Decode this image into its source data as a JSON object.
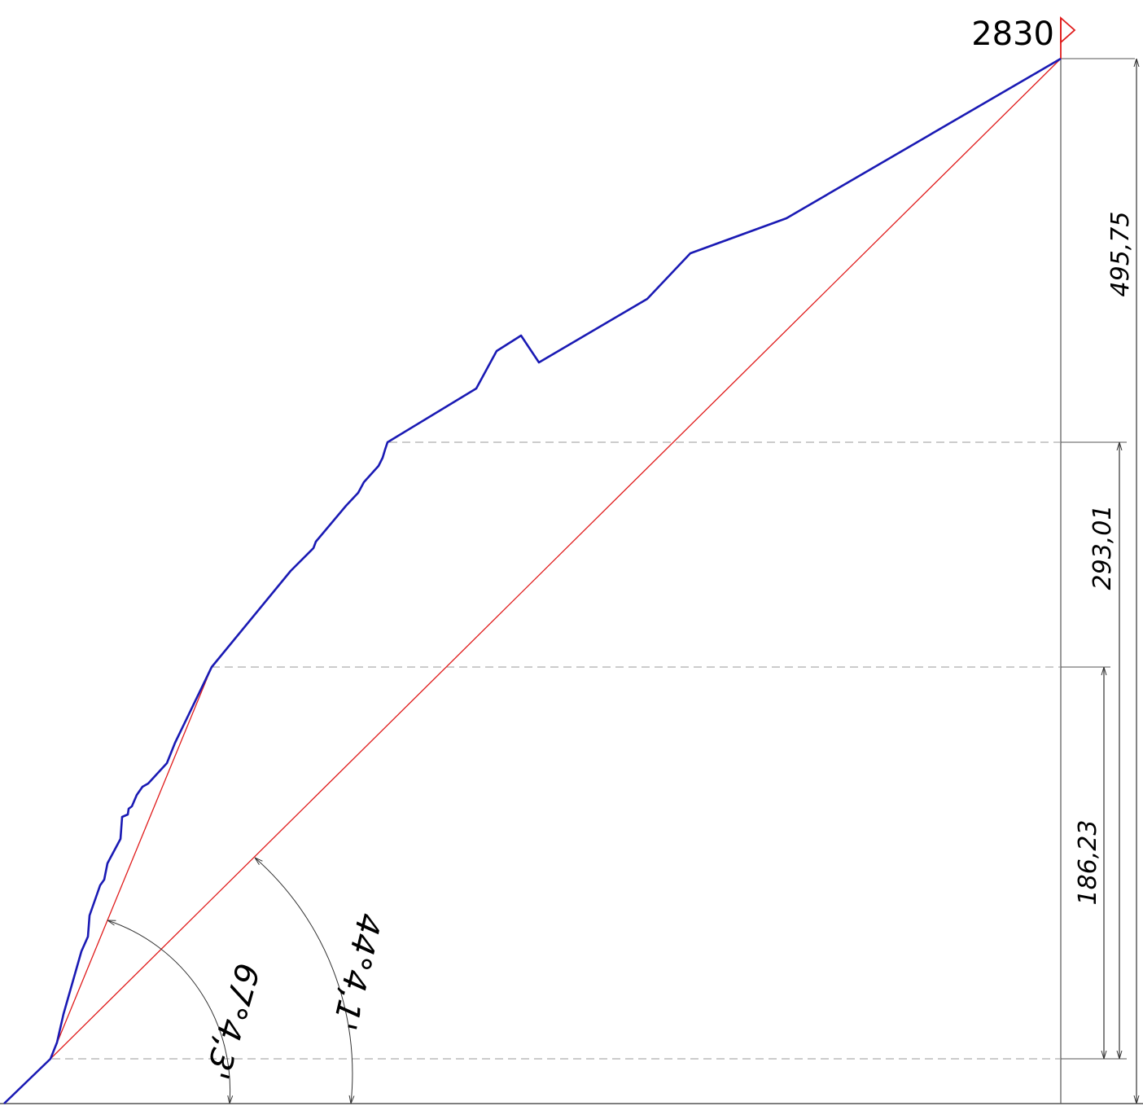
{
  "elevation_marker": {
    "label": "2830"
  },
  "dimensions": {
    "top": "495,75",
    "middle": "293,01",
    "bottom": "186,23"
  },
  "angles": {
    "inner": "44°4,1'",
    "outer": "67°4,3'"
  },
  "colors": {
    "profile": "#1a1ab4",
    "construction": "#e01b1b",
    "dimension": "#333333",
    "dashed": "#999999"
  }
}
